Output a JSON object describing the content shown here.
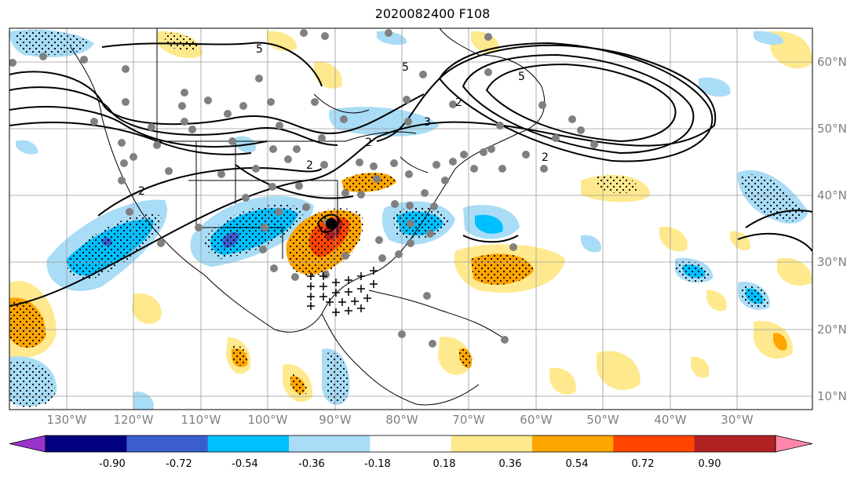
{
  "title": "2020082400 F108",
  "colorbar": {
    "colors": [
      "#9933cc",
      "#000080",
      "#3a5fcd",
      "#00bfff",
      "#a9dcf6",
      "#ffffff",
      "#ffe98e",
      "#ffa500",
      "#ff4500",
      "#b22222",
      "#ff88aa"
    ],
    "labels": [
      "-0.90",
      "-0.72",
      "-0.54",
      "-0.36",
      "-0.18",
      "0.18",
      "0.36",
      "0.54",
      "0.72",
      "0.90"
    ]
  },
  "axes": {
    "lon_labels": [
      "130°W",
      "120°W",
      "110°W",
      "100°W",
      "90°W",
      "80°W",
      "70°W",
      "60°W",
      "50°W",
      "40°W",
      "30°W"
    ],
    "lat_labels": [
      "60°N",
      "50°N",
      "40°N",
      "30°N",
      "20°N",
      "10°N"
    ]
  },
  "contour_labels": [
    "5",
    "5",
    "2",
    "2",
    "2",
    "2",
    "2",
    "3",
    "5"
  ],
  "symbols": {
    "dot": "gray-circle-marker",
    "plus": "plus-marker",
    "stipple": "significance-dots"
  }
}
